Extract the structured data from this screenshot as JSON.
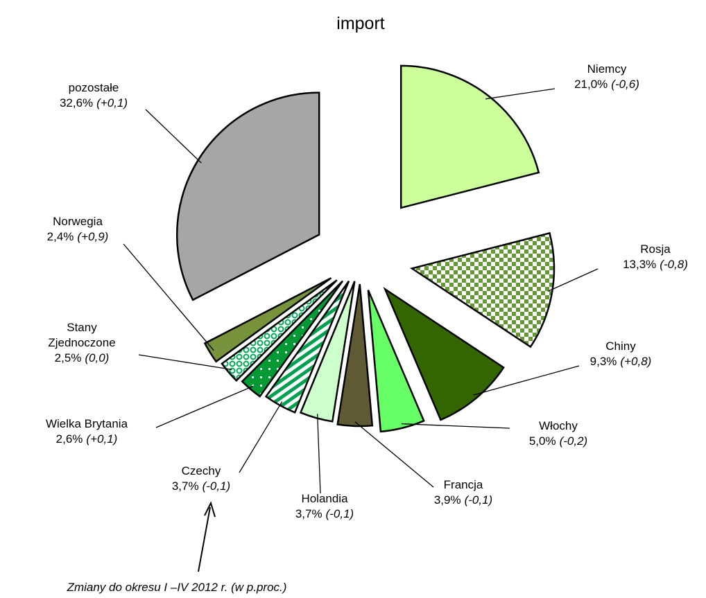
{
  "chart_data": {
    "type": "pie",
    "title": "import",
    "categories": [
      "Niemcy",
      "Rosja",
      "Chiny",
      "Włochy",
      "Francja",
      "Holandia",
      "Czechy",
      "Wielka Brytania",
      "Stany Zjednoczone",
      "Norwegia",
      "pozostałe"
    ],
    "values": [
      21.0,
      13.3,
      9.3,
      5.0,
      3.9,
      3.7,
      3.7,
      2.6,
      2.5,
      2.4,
      32.6
    ],
    "value_labels": [
      "21,0%",
      "13,3%",
      "9,3%",
      "5,0%",
      "3,9%",
      "3,7%",
      "3,7%",
      "2,6%",
      "2,5%",
      "2,4%",
      "32,6%"
    ],
    "changes": [
      "(-0,6)",
      "(-0,8)",
      "(+0,8)",
      "(-0,2)",
      "(-0,1)",
      "(-0,1)",
      "(-0,1)",
      "(+0,1)",
      "(0,0)",
      "(+0,9)",
      "(+0,1)"
    ],
    "colors": [
      "#ccff99",
      "url(#checker)",
      "#336600",
      "#66ff66",
      "#5f5a33",
      "#ccffcc",
      "url(#stripes)",
      "url(#dots)",
      "url(#rings)",
      "#77933c",
      "#a6a6a6"
    ],
    "annotation": "Zmiany do okresu I –IV 2012 r. (w p.proc.)"
  }
}
